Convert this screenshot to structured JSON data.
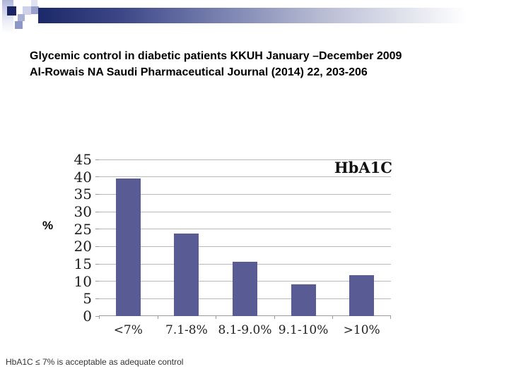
{
  "slide": {
    "title_line1": "Glycemic control in diabetic patients KKUH January –December 2009",
    "title_line2": "Al-Rowais NA Saudi Pharmaceutical Journal (2014) 22, 203-206",
    "footnote": "HbA1C ≤ 7% is acceptable as adequate control"
  },
  "colors": {
    "bar": "#595b94",
    "gridline": "#b9b9b9",
    "axis": "#9a9a9a",
    "banner_dark": "#1b2969",
    "banner_light": "#ffffff",
    "square_dark": "#1a2563"
  },
  "chart_data": {
    "type": "bar",
    "categories": [
      "<7%",
      "7.1-8%",
      "8.1-9.0%",
      "9.1-10%",
      ">10%"
    ],
    "values": [
      39.6,
      23.8,
      15.6,
      9.1,
      11.8
    ],
    "legend": "HbA1C",
    "title": "",
    "xlabel": "",
    "ylabel": "%",
    "ylim": [
      0,
      45
    ],
    "ytick_step": 5,
    "grid": true,
    "legend_position": "top-right"
  }
}
